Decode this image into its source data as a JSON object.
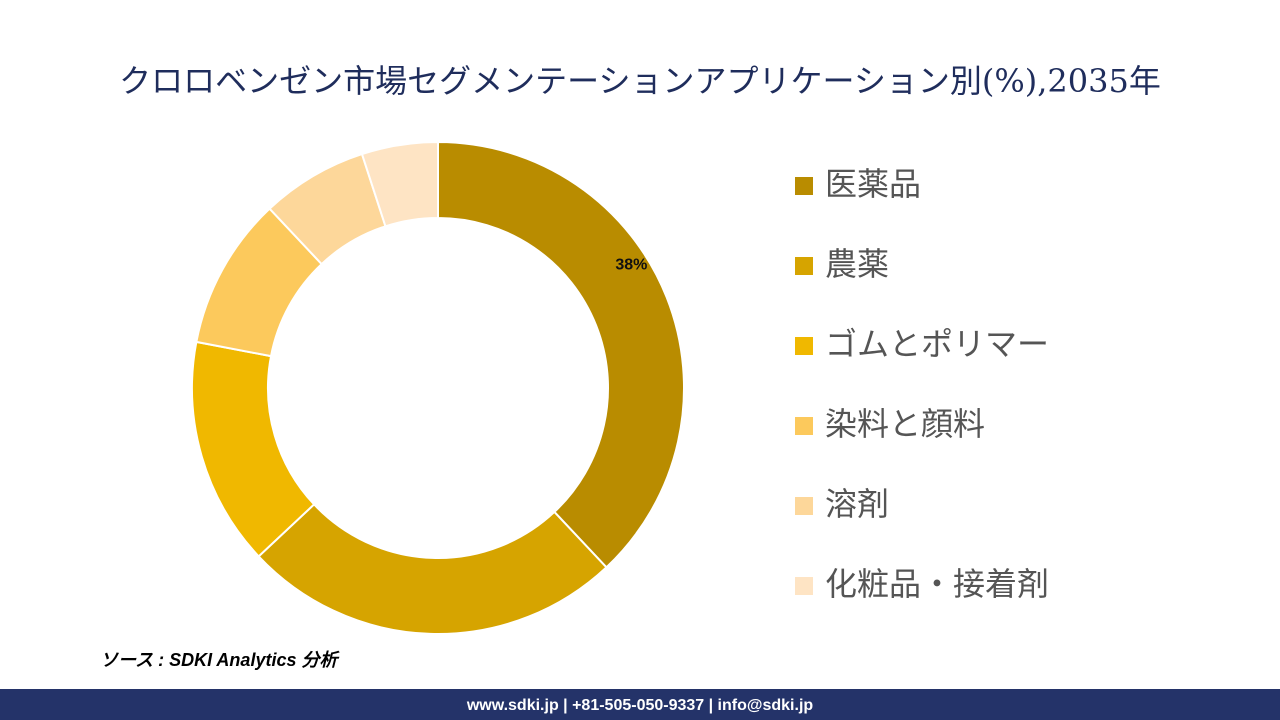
{
  "chart_data": {
    "type": "donut",
    "title": "クロロベンゼン市場セグメンテーションアプリケーション別(%),2035年",
    "categories": [
      "医薬品",
      "農薬",
      "ゴムとポリマー",
      "染料と顔料",
      "溶剤",
      "化粧品・接着剤"
    ],
    "values": [
      38,
      25,
      15,
      10,
      7,
      5
    ],
    "value_labels": [
      "38%",
      null,
      null,
      null,
      null,
      null
    ],
    "colors": [
      "#b98c00",
      "#d6a400",
      "#f0b800",
      "#fcc95c",
      "#fdd79a",
      "#fee4c4"
    ],
    "legend": "right"
  },
  "source": "ソース : SDKI Analytics 分析",
  "footer": "www.sdki.jp | +81-505-050-9337 | info@sdki.jp"
}
